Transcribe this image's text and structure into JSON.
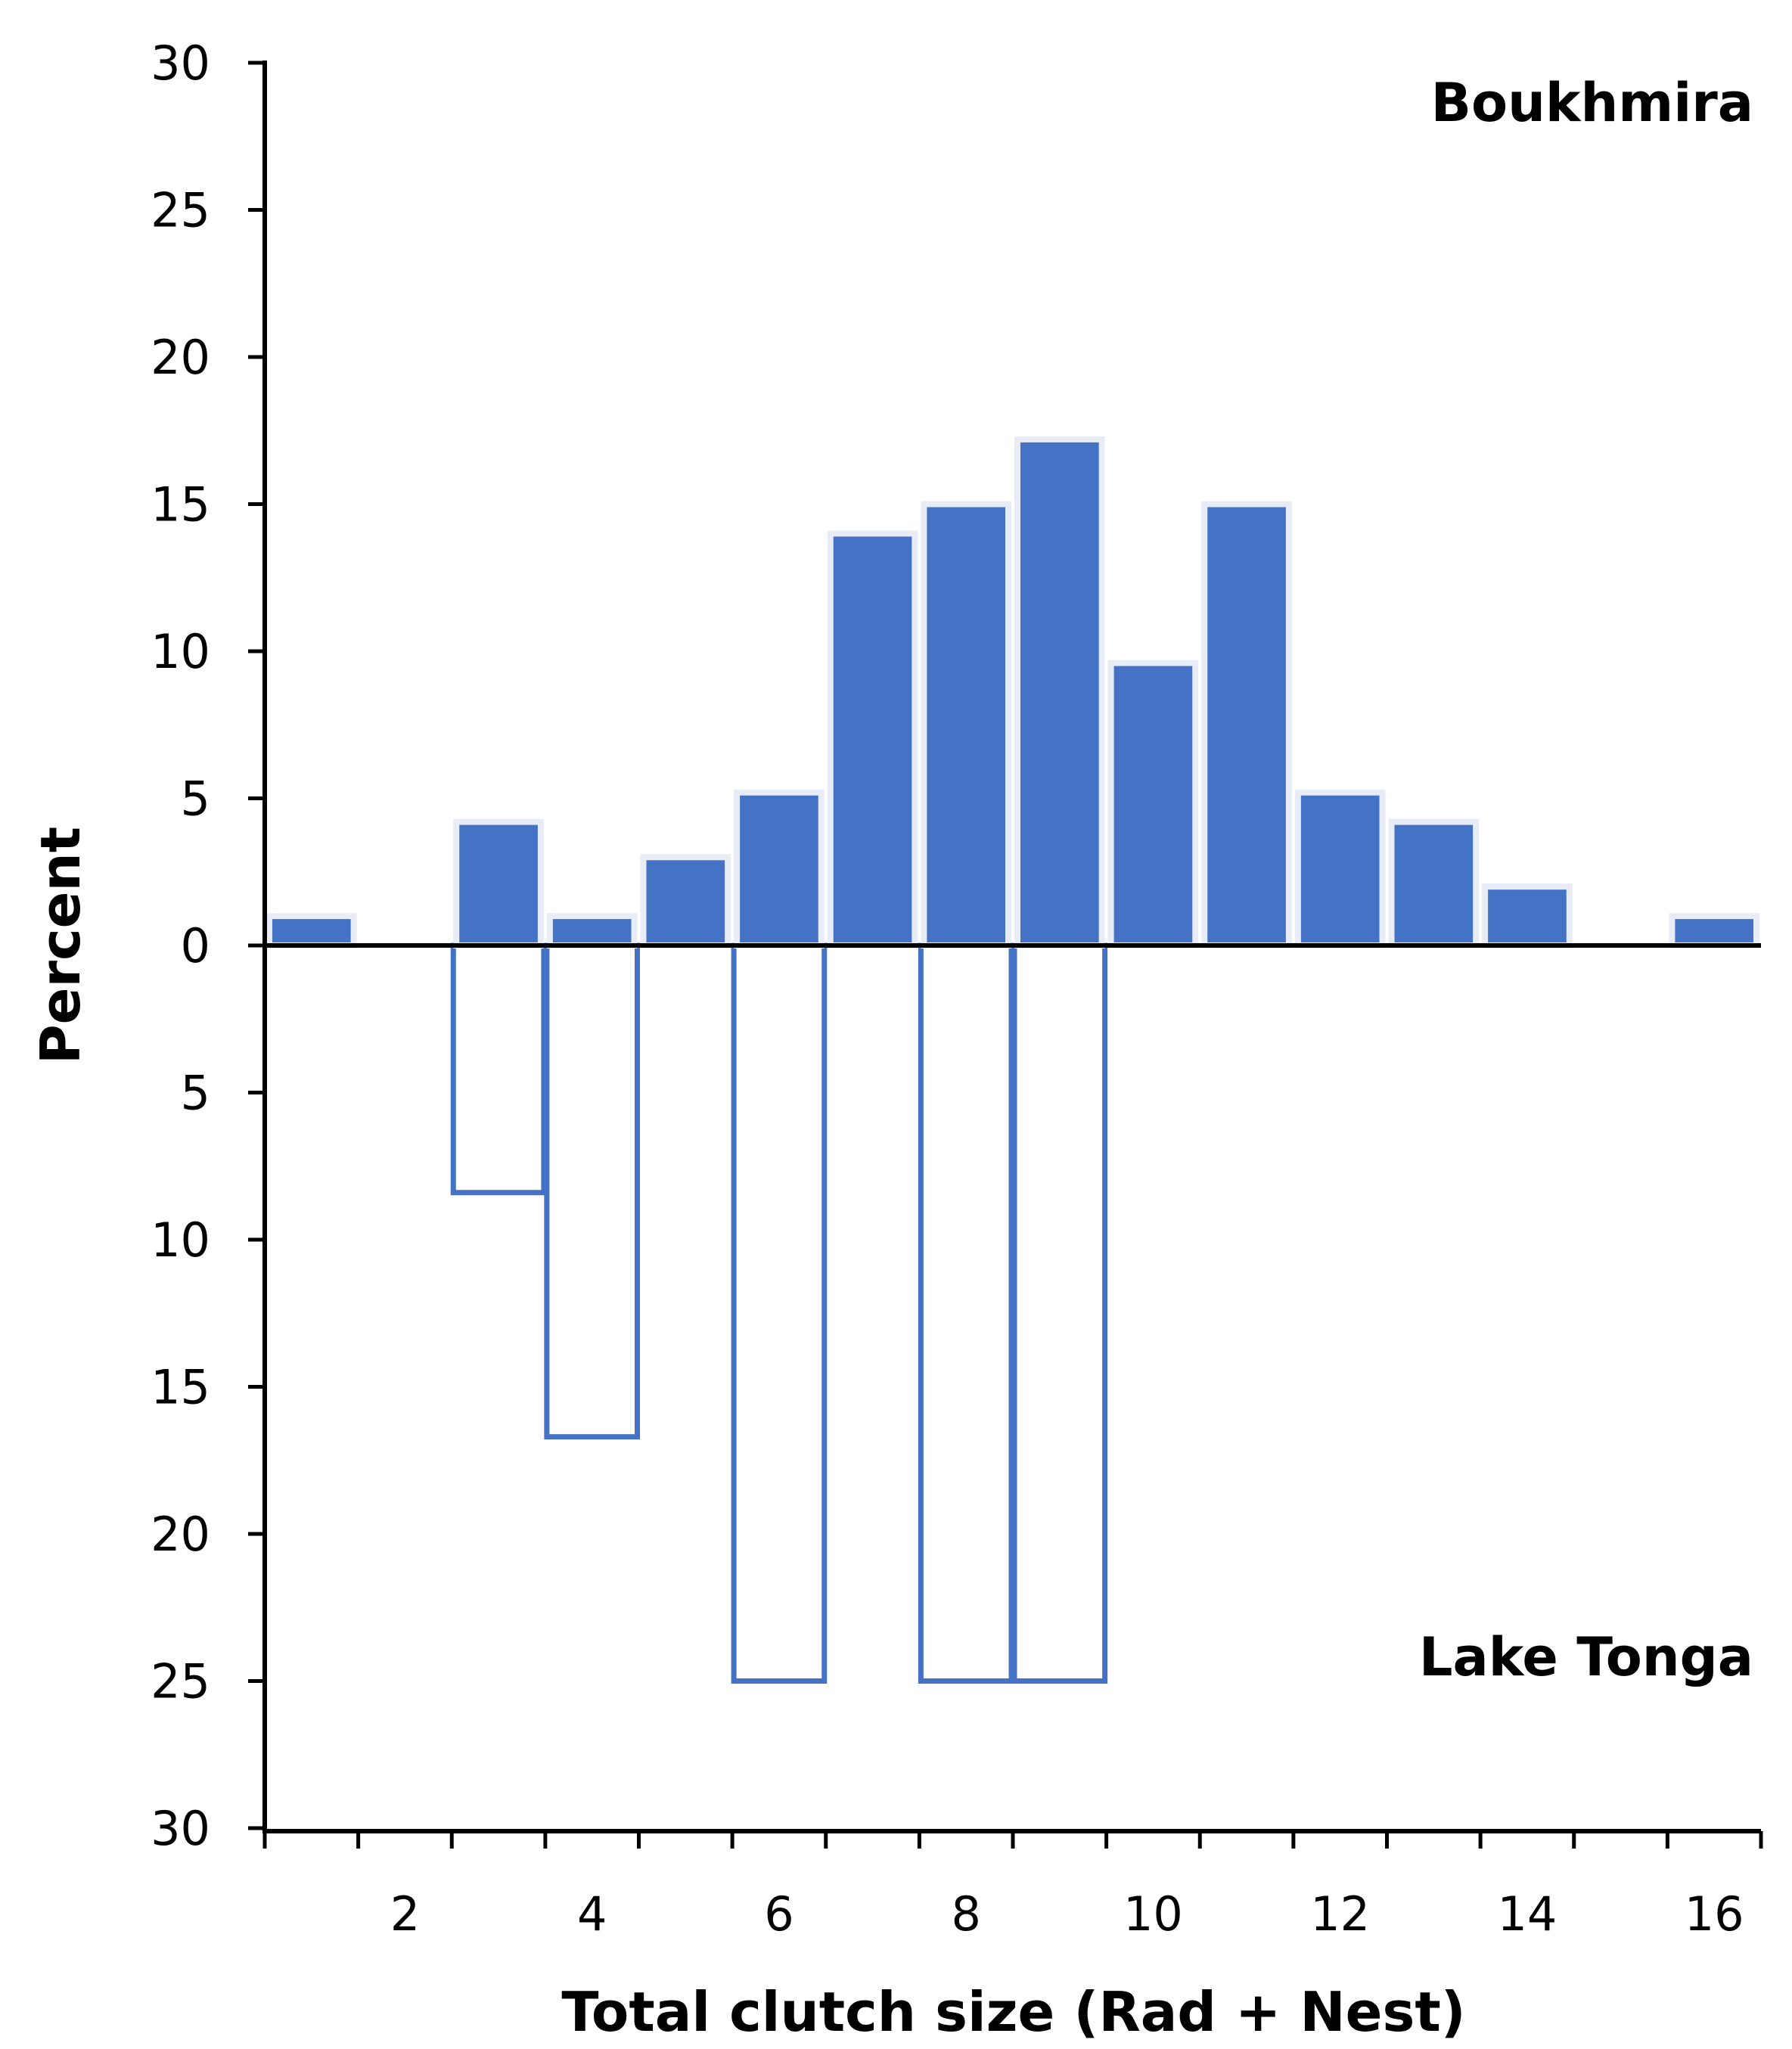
{
  "chart_data": {
    "type": "bar",
    "title": "",
    "xlabel": "Total clutch size (Rad + Nest)",
    "ylabel": "Percent",
    "x": [
      1,
      2,
      3,
      4,
      5,
      6,
      7,
      8,
      9,
      10,
      11,
      12,
      13,
      14,
      15,
      16
    ],
    "xticks": [
      2,
      4,
      6,
      8,
      10,
      12,
      14,
      16
    ],
    "xlim": [
      0.5,
      16.5
    ],
    "yticks_up": [
      0,
      5,
      10,
      15,
      20,
      25,
      30
    ],
    "yticks_down": [
      5,
      10,
      15,
      20,
      25,
      30
    ],
    "ylim": [
      -30,
      30
    ],
    "series": [
      {
        "name": "Boukhmira",
        "direction": "up",
        "style": "filled",
        "color": "#4472C4",
        "values": [
          1,
          0,
          4.2,
          1,
          3,
          5.2,
          14,
          15,
          17.2,
          9.6,
          15,
          5.2,
          4.2,
          2,
          0,
          1
        ]
      },
      {
        "name": "Lake Tonga",
        "direction": "down",
        "style": "outline",
        "color": "#4472C4",
        "values": [
          0,
          0,
          8.4,
          16.7,
          0,
          25,
          0,
          25,
          25,
          0,
          0,
          0,
          0,
          0,
          0,
          0
        ]
      }
    ]
  }
}
